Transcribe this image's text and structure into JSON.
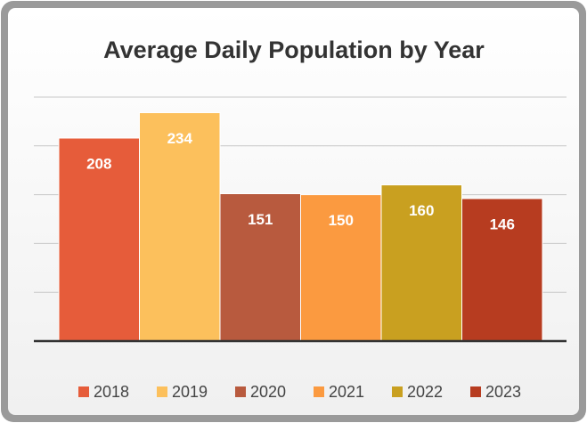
{
  "chart_data": {
    "type": "bar",
    "title": "Average Daily Population by Year",
    "categories": [
      "2018",
      "2019",
      "2020",
      "2021",
      "2022",
      "2023"
    ],
    "values": [
      208,
      234,
      151,
      150,
      160,
      146
    ],
    "colors": [
      "#e65c3a",
      "#fcc05c",
      "#b85a3e",
      "#fb9a40",
      "#c9a020",
      "#b73c20"
    ],
    "ylim": [
      0,
      250
    ],
    "yticks": [
      0,
      50,
      100,
      150,
      200,
      250
    ],
    "grid": true,
    "legend": "bottom"
  }
}
